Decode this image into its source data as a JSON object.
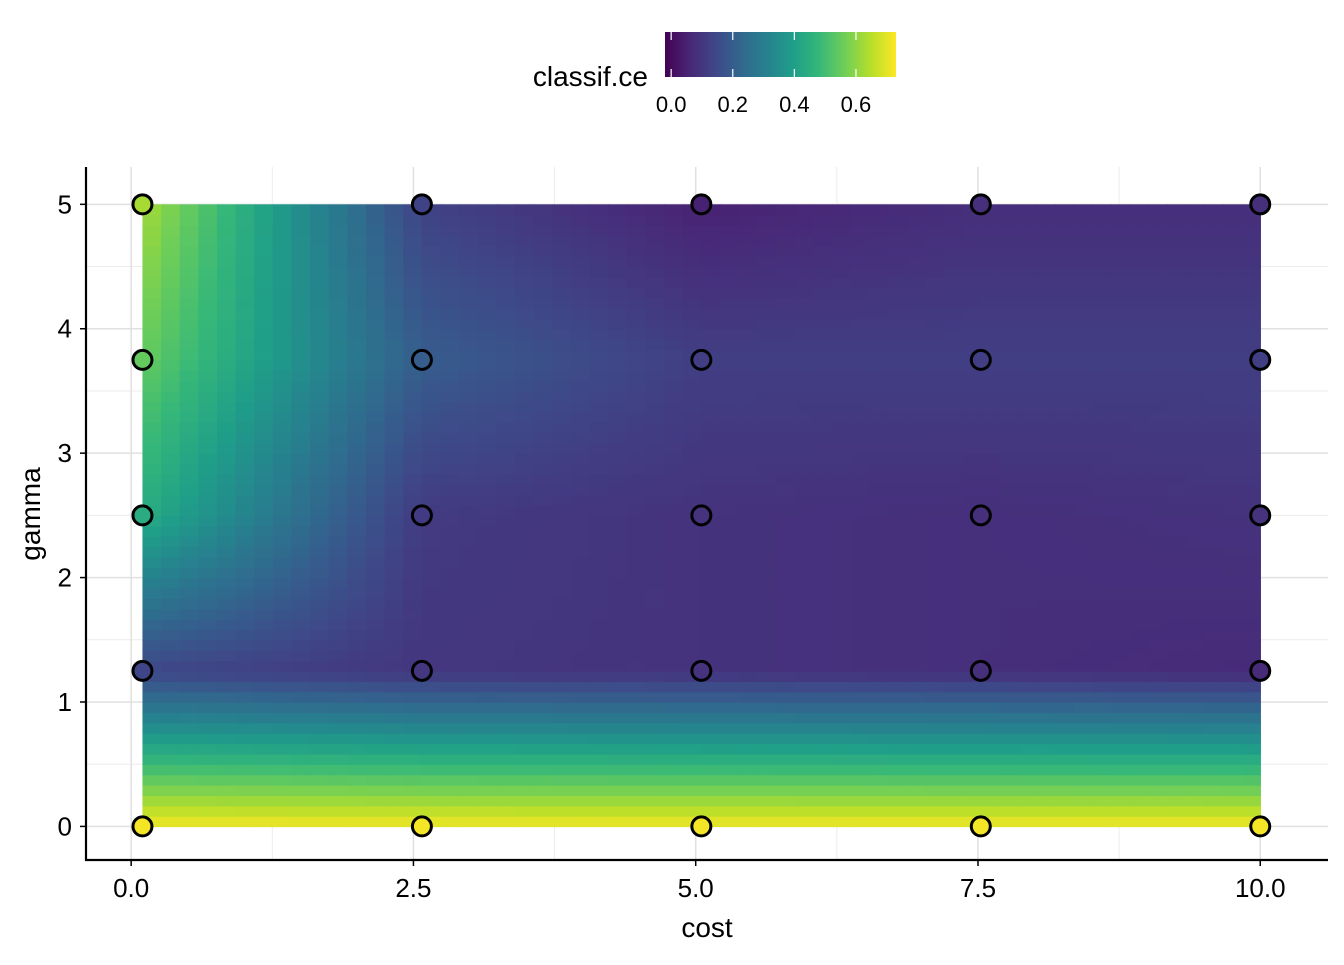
{
  "chart_data": {
    "type": "heatmap",
    "title": "",
    "xlabel": "cost",
    "ylabel": "gamma",
    "xlim": [
      -0.4,
      10.6
    ],
    "ylim": [
      -0.27,
      5.3
    ],
    "x_ticks": [
      0.0,
      2.5,
      5.0,
      7.5,
      10.0
    ],
    "x_tick_labels": [
      "0.0",
      "2.5",
      "5.0",
      "7.5",
      "10.0"
    ],
    "y_ticks": [
      0,
      1,
      2,
      3,
      4,
      5
    ],
    "y_tick_labels": [
      "0",
      "1",
      "2",
      "3",
      "4",
      "5"
    ],
    "grid": true,
    "legend": {
      "title": "classif.ce",
      "placement": "top",
      "range": [
        -0.02,
        0.73
      ],
      "ticks": [
        0.0,
        0.2,
        0.4,
        0.6
      ],
      "tick_labels": [
        "0.0",
        "0.2",
        "0.4",
        "0.6"
      ],
      "colors": [
        "#440154",
        "#482878",
        "#3e4989",
        "#31688e",
        "#26828e",
        "#1f9e89",
        "#35b779",
        "#6ece58",
        "#b5de2b",
        "#fde725"
      ]
    },
    "surface_extent": {
      "x": [
        0.1,
        10.0
      ],
      "y": [
        0.0,
        5.0
      ]
    },
    "grid_x": [
      0.1,
      2.575,
      5.05,
      7.525,
      10.0
    ],
    "grid_y": [
      0.0,
      1.25,
      2.5,
      3.75,
      5.0
    ],
    "values": [
      [
        0.72,
        0.72,
        0.72,
        0.72,
        0.72
      ],
      [
        0.14,
        0.1,
        0.09,
        0.08,
        0.07
      ],
      [
        0.44,
        0.11,
        0.09,
        0.08,
        0.09
      ],
      [
        0.55,
        0.2,
        0.12,
        0.12,
        0.12
      ],
      [
        0.63,
        0.13,
        0.05,
        0.08,
        0.08
      ]
    ],
    "points": [
      {
        "x": 0.1,
        "y": 0.0,
        "value": 0.72
      },
      {
        "x": 2.575,
        "y": 0.0,
        "value": 0.72
      },
      {
        "x": 5.05,
        "y": 0.0,
        "value": 0.72
      },
      {
        "x": 7.525,
        "y": 0.0,
        "value": 0.72
      },
      {
        "x": 10.0,
        "y": 0.0,
        "value": 0.72
      },
      {
        "x": 0.1,
        "y": 1.25,
        "value": 0.14
      },
      {
        "x": 2.575,
        "y": 1.25,
        "value": 0.1
      },
      {
        "x": 5.05,
        "y": 1.25,
        "value": 0.09
      },
      {
        "x": 7.525,
        "y": 1.25,
        "value": 0.08
      },
      {
        "x": 10.0,
        "y": 1.25,
        "value": 0.07
      },
      {
        "x": 0.1,
        "y": 2.5,
        "value": 0.44
      },
      {
        "x": 2.575,
        "y": 2.5,
        "value": 0.11
      },
      {
        "x": 5.05,
        "y": 2.5,
        "value": 0.09
      },
      {
        "x": 7.525,
        "y": 2.5,
        "value": 0.08
      },
      {
        "x": 10.0,
        "y": 2.5,
        "value": 0.09
      },
      {
        "x": 0.1,
        "y": 3.75,
        "value": 0.55
      },
      {
        "x": 2.575,
        "y": 3.75,
        "value": 0.2
      },
      {
        "x": 5.05,
        "y": 3.75,
        "value": 0.12
      },
      {
        "x": 7.525,
        "y": 3.75,
        "value": 0.12
      },
      {
        "x": 10.0,
        "y": 3.75,
        "value": 0.12
      },
      {
        "x": 0.1,
        "y": 5.0,
        "value": 0.63
      },
      {
        "x": 2.575,
        "y": 5.0,
        "value": 0.13
      },
      {
        "x": 5.05,
        "y": 5.0,
        "value": 0.05
      },
      {
        "x": 7.525,
        "y": 5.0,
        "value": 0.08
      },
      {
        "x": 10.0,
        "y": 5.0,
        "value": 0.08
      }
    ]
  }
}
